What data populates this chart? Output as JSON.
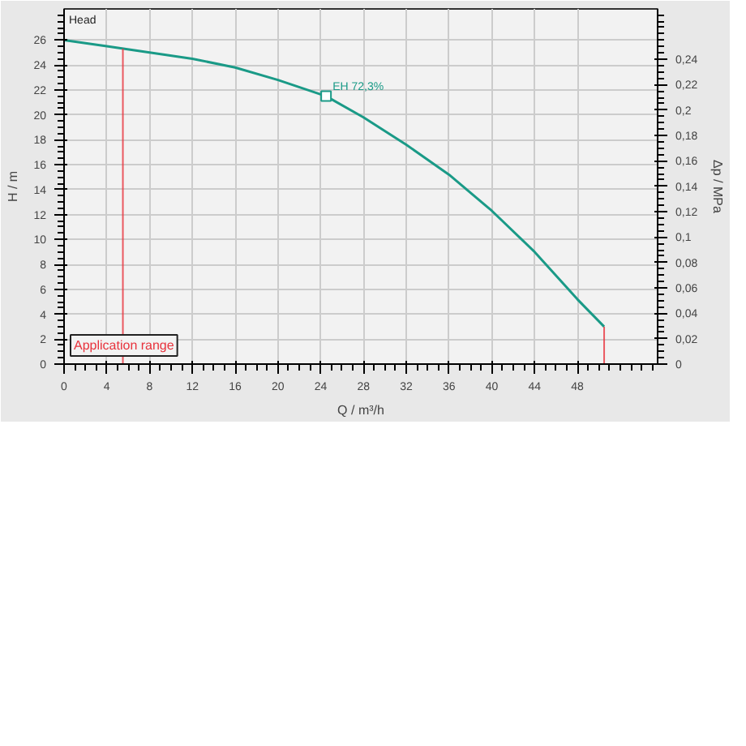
{
  "chart_data": {
    "type": "line",
    "xlabel": "Q / m³/h",
    "ylabel": "H / m",
    "y2label": "Δp / MPa",
    "x": [
      0,
      4,
      8,
      12,
      16,
      20,
      24.5,
      28,
      32,
      36,
      40,
      44,
      48,
      50.5
    ],
    "series": [
      {
        "color": "#1a9a87",
        "values": [
          26,
          25.5,
          25.0,
          24.5,
          23.8,
          22.8,
          21.5,
          19.8,
          17.6,
          15.2,
          12.3,
          9.0,
          5.2,
          3.0
        ]
      },
      {
        "type": "scatter",
        "marker": "square",
        "color": "#1a9a87",
        "x": [
          24.5
        ],
        "values": [
          21.5
        ]
      }
    ],
    "annotations": [
      "Head",
      {
        "text": "EH  72,3%",
        "x": 24.5,
        "y": 21.5
      },
      "Application range"
    ],
    "ref_lines": [
      {
        "axis": "x",
        "value": 5.5,
        "label": null,
        "color": "#e8323c"
      },
      {
        "axis": "x",
        "value": 50.5,
        "label": null,
        "color": "#e8323c"
      }
    ],
    "xlim": [
      0,
      55.5
    ],
    "xticks": [
      0,
      4,
      8,
      12,
      16,
      20,
      24,
      28,
      32,
      36,
      40,
      44,
      48
    ],
    "ylim": [
      0,
      28.5
    ],
    "yticks": [
      0,
      2,
      4,
      6,
      8,
      10,
      12,
      14,
      16,
      18,
      20,
      22,
      24,
      26
    ],
    "y2lim": [
      0,
      0.2796
    ],
    "y2ticks": [
      0,
      {
        "value": 0.02,
        "label": "0,02"
      },
      {
        "value": 0.04,
        "label": "0,04"
      },
      {
        "value": 0.06,
        "label": "0,06"
      },
      {
        "value": 0.08,
        "label": "0,08"
      },
      {
        "value": 0.1,
        "label": "0,1"
      },
      {
        "value": 0.12,
        "label": "0,12"
      },
      {
        "value": 0.14,
        "label": "0,14"
      },
      {
        "value": 0.16,
        "label": "0,16"
      },
      {
        "value": 0.18,
        "label": "0,18"
      },
      {
        "value": 0.2,
        "label": "0,2"
      },
      {
        "value": 0.22,
        "label": "0,22"
      },
      {
        "value": 0.24,
        "label": "0,24"
      }
    ],
    "grid": true,
    "marker": "none",
    "line_style": "solid"
  }
}
